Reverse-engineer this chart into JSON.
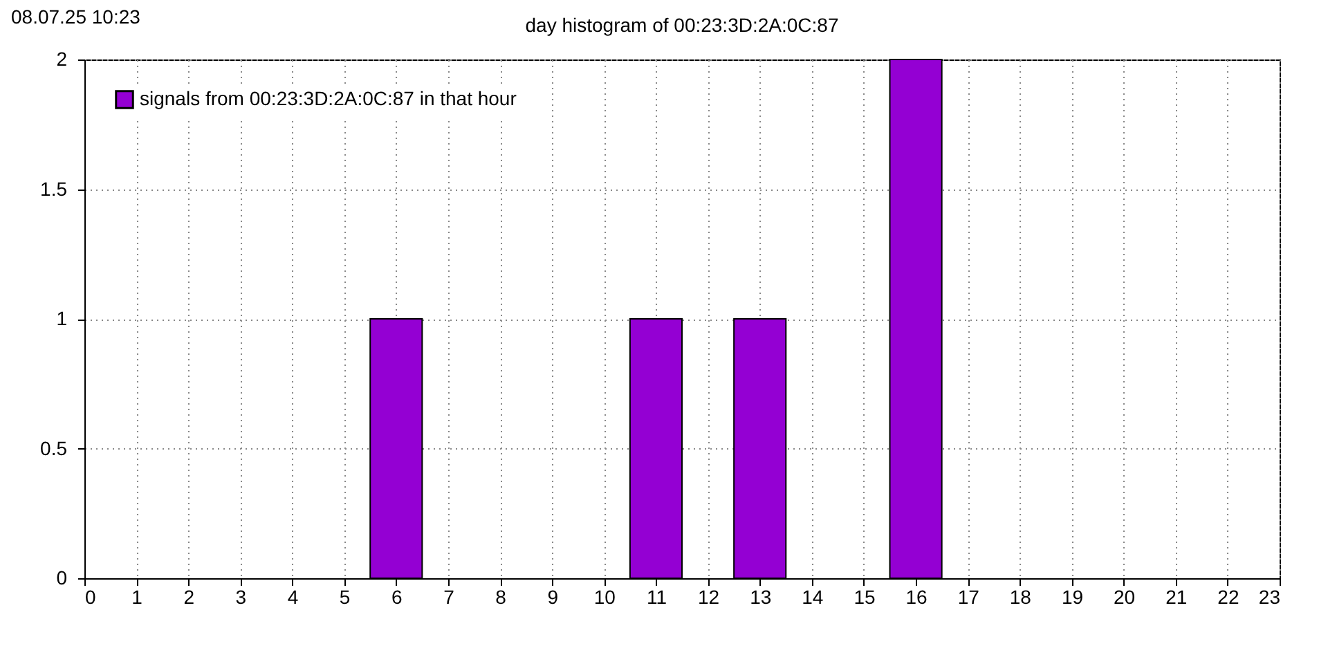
{
  "chart_data": {
    "type": "bar",
    "title": "day histogram of 00:23:3D:2A:0C:87",
    "annotations": [
      "08.07.25 10:23"
    ],
    "x": [
      6,
      11,
      13,
      16
    ],
    "series": [
      {
        "name": "signals from 00:23:3D:2A:0C:87 in that hour",
        "color": "#9400d3",
        "values": [
          1,
          1,
          1,
          2
        ]
      }
    ],
    "xlim": [
      0,
      23
    ],
    "xticks": [
      0,
      1,
      2,
      3,
      4,
      5,
      6,
      7,
      8,
      9,
      10,
      11,
      12,
      13,
      14,
      15,
      16,
      17,
      18,
      19,
      20,
      21,
      22,
      23
    ],
    "ylim": [
      0,
      2
    ],
    "yticks": [
      0,
      0.5,
      1,
      1.5,
      2
    ],
    "grid": true,
    "legend": "top left"
  }
}
